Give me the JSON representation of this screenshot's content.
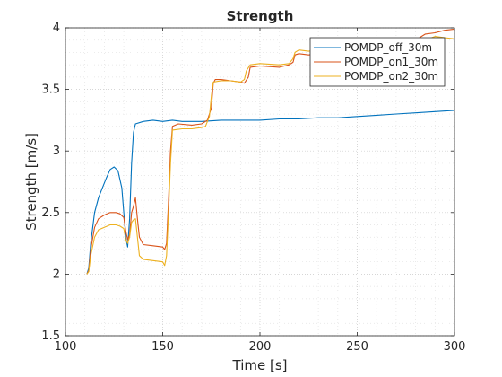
{
  "chart_data": {
    "type": "line",
    "title": "Strength",
    "xlabel": "Time [s]",
    "ylabel": "Strength [m/s]",
    "xlim": [
      100,
      300
    ],
    "ylim": [
      1.5,
      4
    ],
    "xticks": [
      100,
      150,
      200,
      250,
      300
    ],
    "yticks": [
      1.5,
      2,
      2.5,
      3,
      3.5,
      4
    ],
    "grid": "major and minor, dotted",
    "legend_position": "top-right",
    "series": [
      {
        "name": "POMDP_off_30m",
        "color": "#0072BD",
        "points": [
          [
            111,
            2.0
          ],
          [
            112,
            2.05
          ],
          [
            113,
            2.25
          ],
          [
            115,
            2.5
          ],
          [
            117,
            2.62
          ],
          [
            119,
            2.7
          ],
          [
            121,
            2.78
          ],
          [
            123,
            2.85
          ],
          [
            125,
            2.87
          ],
          [
            127,
            2.84
          ],
          [
            129,
            2.7
          ],
          [
            130,
            2.5
          ],
          [
            131,
            2.3
          ],
          [
            132,
            2.22
          ],
          [
            133,
            2.45
          ],
          [
            134,
            2.9
          ],
          [
            135,
            3.15
          ],
          [
            136,
            3.22
          ],
          [
            140,
            3.24
          ],
          [
            145,
            3.25
          ],
          [
            150,
            3.24
          ],
          [
            155,
            3.25
          ],
          [
            160,
            3.24
          ],
          [
            170,
            3.24
          ],
          [
            180,
            3.25
          ],
          [
            190,
            3.25
          ],
          [
            200,
            3.25
          ],
          [
            210,
            3.26
          ],
          [
            220,
            3.26
          ],
          [
            230,
            3.27
          ],
          [
            240,
            3.27
          ],
          [
            250,
            3.28
          ],
          [
            260,
            3.29
          ],
          [
            270,
            3.3
          ],
          [
            280,
            3.31
          ],
          [
            290,
            3.32
          ],
          [
            300,
            3.33
          ]
        ]
      },
      {
        "name": "POMDP_on1_30m",
        "color": "#D95319",
        "points": [
          [
            111,
            2.0
          ],
          [
            112,
            2.03
          ],
          [
            113,
            2.2
          ],
          [
            115,
            2.38
          ],
          [
            117,
            2.45
          ],
          [
            120,
            2.48
          ],
          [
            123,
            2.5
          ],
          [
            126,
            2.5
          ],
          [
            128,
            2.49
          ],
          [
            130,
            2.46
          ],
          [
            131,
            2.35
          ],
          [
            132,
            2.28
          ],
          [
            133,
            2.32
          ],
          [
            134,
            2.5
          ],
          [
            135,
            2.55
          ],
          [
            136,
            2.62
          ],
          [
            137,
            2.45
          ],
          [
            138,
            2.3
          ],
          [
            140,
            2.24
          ],
          [
            145,
            2.23
          ],
          [
            150,
            2.22
          ],
          [
            151,
            2.2
          ],
          [
            152,
            2.25
          ],
          [
            153,
            2.6
          ],
          [
            154,
            3.0
          ],
          [
            155,
            3.2
          ],
          [
            158,
            3.22
          ],
          [
            165,
            3.21
          ],
          [
            170,
            3.22
          ],
          [
            173,
            3.25
          ],
          [
            175,
            3.35
          ],
          [
            176,
            3.55
          ],
          [
            177,
            3.58
          ],
          [
            180,
            3.58
          ],
          [
            185,
            3.57
          ],
          [
            190,
            3.56
          ],
          [
            192,
            3.55
          ],
          [
            194,
            3.6
          ],
          [
            195,
            3.68
          ],
          [
            200,
            3.69
          ],
          [
            210,
            3.68
          ],
          [
            215,
            3.7
          ],
          [
            217,
            3.72
          ],
          [
            218,
            3.78
          ],
          [
            220,
            3.79
          ],
          [
            225,
            3.78
          ],
          [
            230,
            3.79
          ],
          [
            232,
            3.78
          ],
          [
            234,
            3.85
          ],
          [
            240,
            3.86
          ],
          [
            250,
            3.86
          ],
          [
            255,
            3.85
          ],
          [
            260,
            3.86
          ],
          [
            265,
            3.86
          ],
          [
            270,
            3.88
          ],
          [
            275,
            3.89
          ],
          [
            280,
            3.9
          ],
          [
            285,
            3.95
          ],
          [
            290,
            3.96
          ],
          [
            295,
            3.98
          ],
          [
            300,
            3.99
          ]
        ]
      },
      {
        "name": "POMDP_on2_30m",
        "color": "#EDB120",
        "points": [
          [
            111,
            2.0
          ],
          [
            112,
            2.02
          ],
          [
            113,
            2.15
          ],
          [
            115,
            2.3
          ],
          [
            117,
            2.36
          ],
          [
            120,
            2.38
          ],
          [
            123,
            2.4
          ],
          [
            126,
            2.4
          ],
          [
            128,
            2.39
          ],
          [
            130,
            2.37
          ],
          [
            131,
            2.28
          ],
          [
            132,
            2.25
          ],
          [
            133,
            2.3
          ],
          [
            134,
            2.42
          ],
          [
            135,
            2.44
          ],
          [
            136,
            2.45
          ],
          [
            137,
            2.3
          ],
          [
            138,
            2.15
          ],
          [
            140,
            2.12
          ],
          [
            145,
            2.11
          ],
          [
            150,
            2.1
          ],
          [
            151,
            2.07
          ],
          [
            152,
            2.15
          ],
          [
            153,
            2.5
          ],
          [
            154,
            2.9
          ],
          [
            155,
            3.17
          ],
          [
            160,
            3.18
          ],
          [
            165,
            3.18
          ],
          [
            170,
            3.19
          ],
          [
            172,
            3.2
          ],
          [
            174,
            3.28
          ],
          [
            175,
            3.45
          ],
          [
            176,
            3.56
          ],
          [
            180,
            3.57
          ],
          [
            185,
            3.57
          ],
          [
            190,
            3.56
          ],
          [
            192,
            3.58
          ],
          [
            193,
            3.65
          ],
          [
            195,
            3.7
          ],
          [
            200,
            3.71
          ],
          [
            210,
            3.7
          ],
          [
            215,
            3.71
          ],
          [
            217,
            3.75
          ],
          [
            218,
            3.8
          ],
          [
            220,
            3.82
          ],
          [
            225,
            3.81
          ],
          [
            230,
            3.82
          ],
          [
            235,
            3.82
          ],
          [
            240,
            3.83
          ],
          [
            250,
            3.84
          ],
          [
            255,
            3.84
          ],
          [
            260,
            3.85
          ],
          [
            265,
            3.86
          ],
          [
            270,
            3.87
          ],
          [
            275,
            3.87
          ],
          [
            280,
            3.88
          ],
          [
            285,
            3.9
          ],
          [
            290,
            3.93
          ],
          [
            295,
            3.92
          ],
          [
            300,
            3.91
          ]
        ]
      }
    ]
  }
}
